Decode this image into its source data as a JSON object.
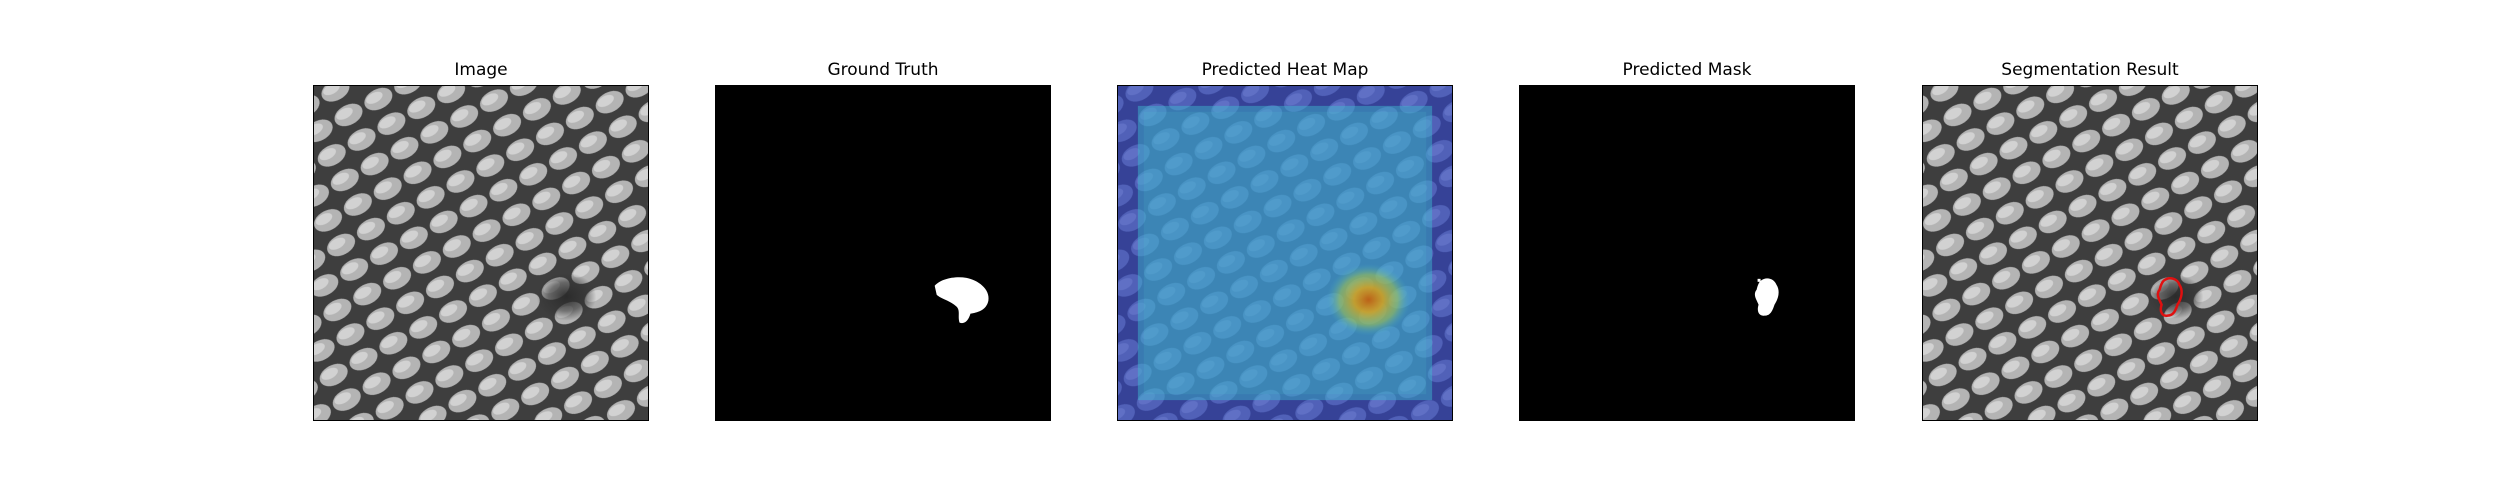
{
  "figure": {
    "panels": [
      {
        "title": "Image",
        "content": "texture"
      },
      {
        "title": "Ground Truth",
        "content": "gt-mask"
      },
      {
        "title": "Predicted Heat Map",
        "content": "heatmap"
      },
      {
        "title": "Predicted Mask",
        "content": "pred-mask"
      },
      {
        "title": "Segmentation Result",
        "content": "overlay"
      }
    ]
  },
  "colors": {
    "background": "#ffffff",
    "mask_bg": "#000000",
    "mask_fg": "#ffffff",
    "heat_edge": "#4b4bb4",
    "heat_inner": "#49b7c9",
    "heat_hot": "#d7a21a",
    "contour": "#e01010",
    "texture_light": "#b8b8b8",
    "texture_dark": "#3a3a3a"
  }
}
